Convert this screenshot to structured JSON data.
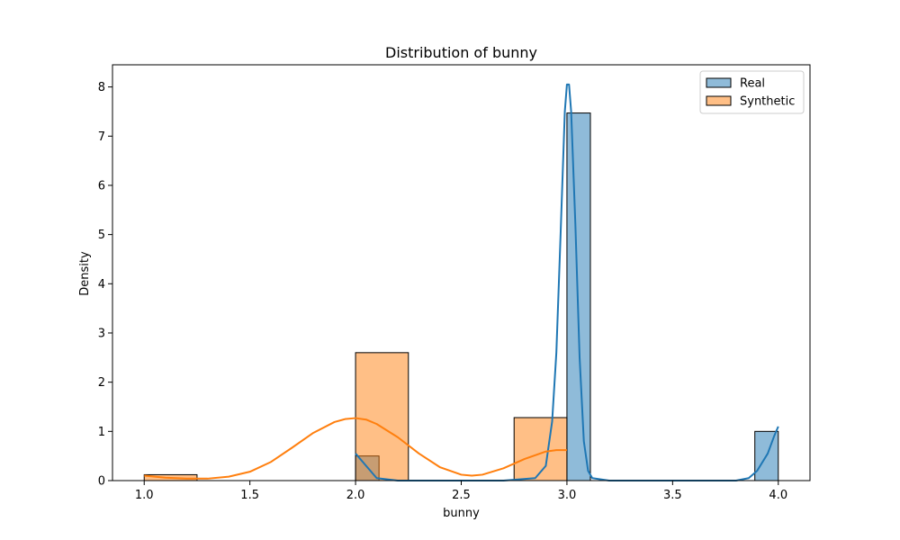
{
  "chart_data": {
    "type": "histogram",
    "title": "Distribution of bunny",
    "xlabel": "bunny",
    "ylabel": "Density",
    "xlim": [
      0.85,
      4.15
    ],
    "ylim": [
      0,
      8.45
    ],
    "xticks": [
      "1.0",
      "1.5",
      "2.0",
      "2.5",
      "3.0",
      "3.5",
      "4.0"
    ],
    "xtick_values": [
      1.0,
      1.5,
      2.0,
      2.5,
      3.0,
      3.5,
      4.0
    ],
    "yticks": [
      "0",
      "1",
      "2",
      "3",
      "4",
      "5",
      "6",
      "7",
      "8"
    ],
    "ytick_values": [
      0,
      1,
      2,
      3,
      4,
      5,
      6,
      7,
      8
    ],
    "grid": false,
    "legend_position": "top-right",
    "series": [
      {
        "name": "Real",
        "color": "#1f77b4",
        "bar_fill": "#8fbbd9",
        "bins": [
          {
            "x0": 2.0,
            "x1": 2.111,
            "density": 0.5
          },
          {
            "x0": 3.0,
            "x1": 3.111,
            "density": 7.47
          },
          {
            "x0": 3.889,
            "x1": 4.0,
            "density": 1.0
          }
        ],
        "kde": {
          "x": [
            2.0,
            2.05,
            2.1,
            2.2,
            2.5,
            2.7,
            2.85,
            2.9,
            2.93,
            2.95,
            2.97,
            2.99,
            3.0,
            3.01,
            3.02,
            3.04,
            3.06,
            3.08,
            3.1,
            3.12,
            3.2,
            3.5,
            3.8,
            3.86,
            3.9,
            3.95,
            3.98,
            4.0
          ],
          "y": [
            0.55,
            0.3,
            0.05,
            0.0,
            0.0,
            0.0,
            0.05,
            0.3,
            1.2,
            2.6,
            5.0,
            7.5,
            8.05,
            8.05,
            7.5,
            5.2,
            2.5,
            0.8,
            0.2,
            0.05,
            0.0,
            0.0,
            0.0,
            0.05,
            0.2,
            0.55,
            0.9,
            1.1
          ]
        }
      },
      {
        "name": "Synthetic",
        "color": "#ff7f0e",
        "bar_fill": "#ffbe86",
        "bins": [
          {
            "x0": 1.0,
            "x1": 1.25,
            "density": 0.12
          },
          {
            "x0": 2.0,
            "x1": 2.25,
            "density": 2.6
          },
          {
            "x0": 2.75,
            "x1": 3.0,
            "density": 1.28
          }
        ],
        "kde": {
          "x": [
            1.0,
            1.1,
            1.2,
            1.3,
            1.4,
            1.5,
            1.6,
            1.7,
            1.8,
            1.9,
            1.95,
            2.0,
            2.05,
            2.1,
            2.2,
            2.3,
            2.4,
            2.5,
            2.55,
            2.6,
            2.7,
            2.8,
            2.9,
            2.95,
            3.0
          ],
          "y": [
            0.1,
            0.06,
            0.04,
            0.04,
            0.08,
            0.18,
            0.38,
            0.67,
            0.97,
            1.19,
            1.25,
            1.27,
            1.24,
            1.15,
            0.88,
            0.55,
            0.27,
            0.12,
            0.1,
            0.12,
            0.25,
            0.44,
            0.59,
            0.62,
            0.62
          ]
        }
      }
    ]
  }
}
